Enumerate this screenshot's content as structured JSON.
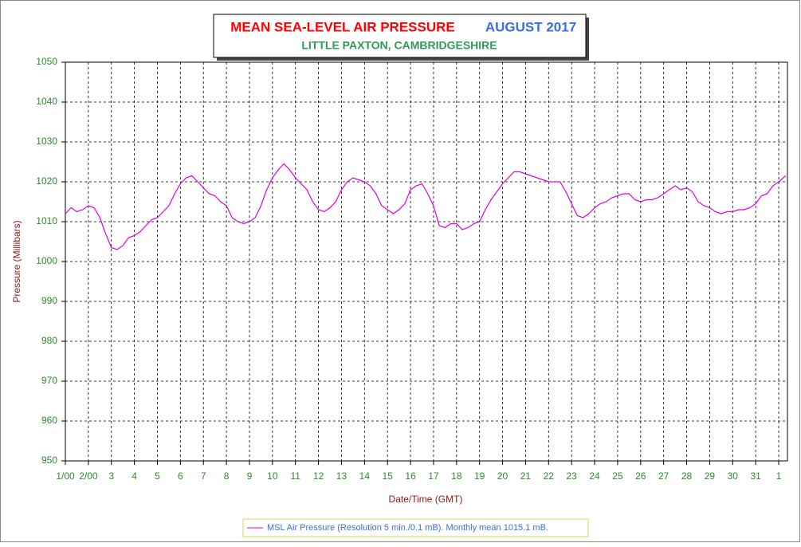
{
  "chart_data": {
    "type": "line",
    "title": "MEAN SEA-LEVEL AIR PRESSURE",
    "title_date": "AUGUST 2017",
    "subtitle": "LITTLE PAXTON, CAMBRIDGESHIRE",
    "x_label": "Date/Time (GMT)",
    "y_label": "Pressure (Millibars)",
    "xlim": [
      1,
      32.38
    ],
    "ylim": [
      950,
      1050
    ],
    "yticks": [
      950,
      960,
      970,
      980,
      990,
      1000,
      1010,
      1020,
      1030,
      1040,
      1050
    ],
    "xticks": [
      {
        "value": 1,
        "label": "1/00"
      },
      {
        "value": 2,
        "label": "2/00"
      },
      3,
      4,
      5,
      6,
      7,
      8,
      9,
      10,
      11,
      12,
      13,
      14,
      15,
      16,
      17,
      18,
      19,
      20,
      21,
      22,
      23,
      24,
      25,
      26,
      27,
      28,
      29,
      30,
      31,
      {
        "value": 32,
        "label": "1"
      }
    ],
    "grid": true,
    "legend": "bottom",
    "x": [
      1,
      1.25,
      1.5,
      1.75,
      2,
      2.25,
      2.5,
      2.75,
      3,
      3.25,
      3.5,
      3.75,
      4,
      4.25,
      4.5,
      4.75,
      5,
      5.25,
      5.5,
      5.75,
      6,
      6.25,
      6.5,
      6.75,
      7,
      7.25,
      7.5,
      7.75,
      8,
      8.25,
      8.5,
      8.75,
      9,
      9.25,
      9.5,
      9.75,
      10,
      10.25,
      10.5,
      10.75,
      11,
      11.25,
      11.5,
      11.75,
      12,
      12.25,
      12.5,
      12.75,
      13,
      13.25,
      13.5,
      13.75,
      14,
      14.25,
      14.5,
      14.75,
      15,
      15.25,
      15.5,
      15.75,
      16,
      16.25,
      16.5,
      16.75,
      17,
      17.25,
      17.5,
      17.75,
      18,
      18.25,
      18.5,
      18.75,
      19,
      19.25,
      19.5,
      19.75,
      20,
      20.25,
      20.5,
      20.75,
      21,
      21.25,
      21.5,
      21.75,
      22,
      22.25,
      22.5,
      22.75,
      23,
      23.25,
      23.5,
      23.75,
      24,
      24.25,
      24.5,
      24.75,
      25,
      25.25,
      25.5,
      25.75,
      26,
      26.25,
      26.5,
      26.75,
      27,
      27.25,
      27.5,
      27.75,
      28,
      28.25,
      28.5,
      28.75,
      29,
      29.25,
      29.5,
      29.75,
      30,
      30.25,
      30.5,
      30.75,
      31,
      31.25,
      31.5,
      31.75,
      32,
      32.3
    ],
    "series": [
      {
        "name": "MSL Air Pressure (Resolution 5 min./0.1 mB). Monthly mean 1015.1 mB.",
        "color": "#e000e0",
        "values": [
          1012,
          1013.5,
          1012.5,
          1013,
          1014,
          1013.5,
          1011,
          1007,
          1003.5,
          1003,
          1004,
          1006,
          1006.5,
          1007.5,
          1009,
          1010.5,
          1011,
          1012.5,
          1014,
          1017,
          1019.5,
          1021,
          1021.5,
          1020,
          1018.5,
          1017,
          1016.5,
          1015,
          1014,
          1011,
          1010,
          1009.5,
          1010,
          1011,
          1014,
          1018,
          1021,
          1023,
          1024.5,
          1023,
          1021,
          1019.5,
          1018,
          1015,
          1013,
          1012.5,
          1013.5,
          1015,
          1018,
          1020,
          1021,
          1020.5,
          1020,
          1019,
          1017,
          1014,
          1013,
          1012,
          1013,
          1014.5,
          1018,
          1019,
          1019.5,
          1017,
          1014,
          1009,
          1008.5,
          1009.5,
          1009.5,
          1008,
          1008.5,
          1009.5,
          1010,
          1013,
          1015.5,
          1017.5,
          1019.5,
          1021,
          1022.5,
          1022.5,
          1022,
          1021.5,
          1021,
          1020.5,
          1020,
          1020,
          1020,
          1017.5,
          1014.5,
          1011.5,
          1011,
          1012,
          1013.5,
          1014.5,
          1015,
          1016,
          1016.5,
          1017,
          1017,
          1015.5,
          1015,
          1015.5,
          1015.5,
          1016,
          1017,
          1018,
          1019,
          1018,
          1018.5,
          1017.5,
          1015,
          1014,
          1013.5,
          1012.5,
          1012,
          1012.5,
          1012.5,
          1013,
          1013,
          1013.5,
          1014.5,
          1016.5,
          1017,
          1019,
          1020,
          1021.5
        ]
      }
    ]
  }
}
